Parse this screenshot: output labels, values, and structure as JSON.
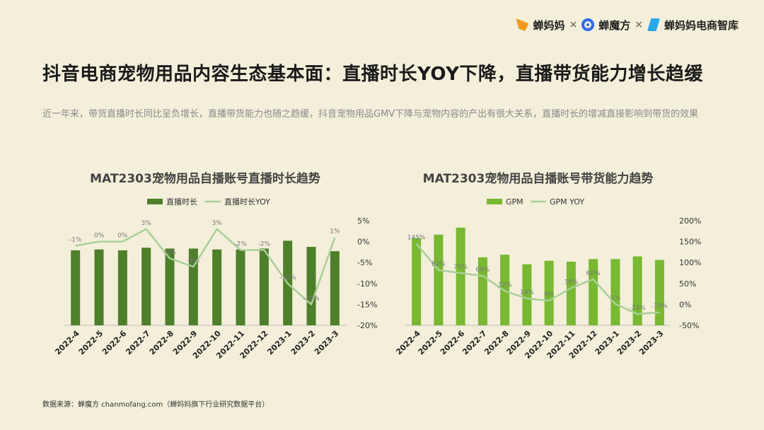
{
  "brand": {
    "items": [
      "蝉妈妈",
      "蝉魔方",
      "蝉妈妈电商智库"
    ],
    "separator": "×"
  },
  "header": {
    "title": "抖音电商宠物用品内容生态基本面：直播时长YOY下降，直播带货能力增长趋缓",
    "subtitle": "近一年来，带货直播时长同比呈负增长，直播带货能力也随之趋缓，抖音宠物用品GMV下降与宠物内容的产出有很大关系，直播时长的增减直接影响到带货的效果"
  },
  "colors": {
    "bar_left": "#4e7f2a",
    "line_left": "#a9cf9a",
    "bar_right": "#79b832",
    "line_right": "#a9cf9a"
  },
  "chart_data": [
    {
      "type": "bar",
      "title": "MAT2303宠物用品自播账号直播时长趋势",
      "categories": [
        "2022-4",
        "2022-5",
        "2022-6",
        "2022-7",
        "2022-8",
        "2022-9",
        "2022-10",
        "2022-11",
        "2022-12",
        "2023-1",
        "2023-2",
        "2023-3"
      ],
      "series": [
        {
          "name": "直播时长",
          "type": "bar",
          "axis": "left",
          "values": [
            0.86,
            0.87,
            0.86,
            0.89,
            0.88,
            0.88,
            0.87,
            0.87,
            0.88,
            0.97,
            0.9,
            0.85
          ]
        },
        {
          "name": "直播时长YOY",
          "type": "line",
          "axis": "right",
          "values": [
            -1,
            0,
            0,
            3,
            -4,
            -6,
            3,
            -2,
            -2,
            -10,
            -15,
            1
          ],
          "labels": [
            "-1%",
            "0%",
            "0%",
            "3%",
            "-4%",
            "-6%",
            "3%",
            "-2%",
            "-2%",
            "-10%",
            "-15%",
            "1%"
          ]
        }
      ],
      "y2_ticks": [
        "5%",
        "0%",
        "-5%",
        "-10%",
        "-15%",
        "-20%"
      ],
      "y2lim": [
        -20,
        5
      ],
      "legend": "top"
    },
    {
      "type": "bar",
      "title": "MAT2303宠物用品自播账号带货能力趋势",
      "categories": [
        "2022-4",
        "2022-5",
        "2022-6",
        "2022-7",
        "2022-8",
        "2022-9",
        "2022-10",
        "2022-11",
        "2022-12",
        "2023-1",
        "2023-2",
        "2023-3"
      ],
      "series": [
        {
          "name": "GPM",
          "type": "bar",
          "axis": "left",
          "values": [
            1.0,
            1.04,
            1.12,
            0.78,
            0.81,
            0.7,
            0.74,
            0.73,
            0.76,
            0.76,
            0.79,
            0.75
          ]
        },
        {
          "name": "GPM YOY",
          "type": "line",
          "axis": "right",
          "values": [
            145,
            82,
            75,
            68,
            32,
            14,
            9,
            39,
            60,
            1,
            -23,
            -19
          ],
          "labels": [
            "145%",
            "82%",
            "75%",
            "68%",
            "32%",
            "14%",
            "9%",
            "39%",
            "60%",
            "1%",
            "-23%",
            "-19%"
          ]
        }
      ],
      "y2_ticks": [
        "200%",
        "150%",
        "100%",
        "50%",
        "0%",
        "-50%"
      ],
      "y2lim": [
        -50,
        200
      ],
      "legend": "top"
    }
  ],
  "footer": {
    "source": "数据来源：蝉魔方 chanmofang.com（蝉妈妈旗下行业研究数据平台）"
  }
}
